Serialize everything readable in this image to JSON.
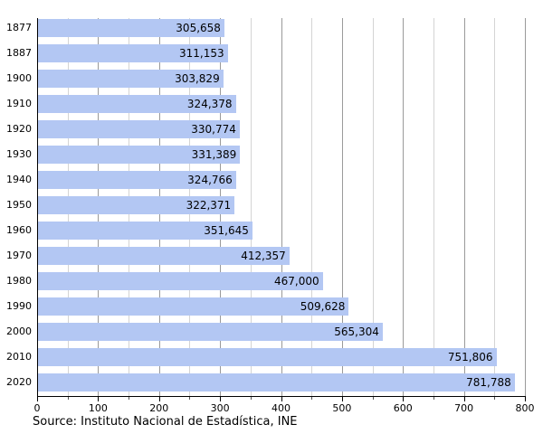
{
  "chart_data": {
    "type": "bar",
    "orientation": "horizontal",
    "title": "",
    "categories": [
      "1877",
      "1887",
      "1900",
      "1910",
      "1920",
      "1930",
      "1940",
      "1950",
      "1960",
      "1970",
      "1980",
      "1990",
      "2000",
      "2010",
      "2020"
    ],
    "values": [
      305658,
      311153,
      303829,
      324378,
      330774,
      331389,
      324766,
      322371,
      351645,
      412357,
      467000,
      509628,
      565304,
      751806,
      781788
    ],
    "value_labels": [
      "305,658",
      "311,153",
      "303,829",
      "324,378",
      "330,774",
      "331,389",
      "324,766",
      "322,371",
      "351,645",
      "412,357",
      "467,000",
      "509,628",
      "565,304",
      "751,806",
      "781,788"
    ],
    "x_axis": {
      "tick_labels": [
        "0",
        "100",
        "200",
        "300",
        "400",
        "500",
        "600",
        "700",
        "800"
      ],
      "major_step": 100,
      "minor_step": 50,
      "min": 0,
      "max": 800
    },
    "grid": "vertical, major and minor",
    "legend": "none",
    "source": "Source: Instituto Nacional de Estadística, INE",
    "colors": {
      "bar_fill": "#b3c7f3",
      "major_grid": "#9a9a9a",
      "minor_grid": "#d4d4d4",
      "axis": "#000000",
      "text": "#000000",
      "background": "#ffffff"
    }
  }
}
